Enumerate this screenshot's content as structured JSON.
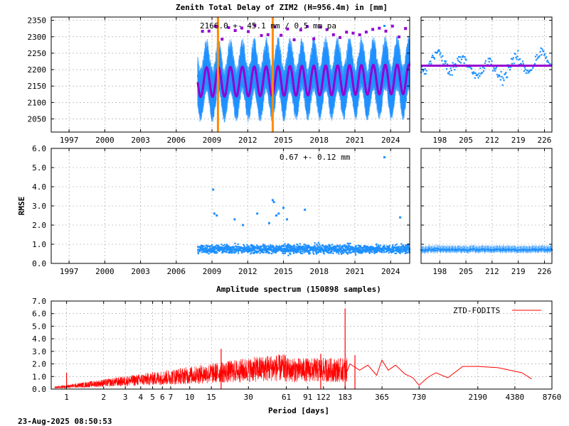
{
  "colors": {
    "ztd": "#1e90ff",
    "model": "#9400d3",
    "rmse": "#1e90ff",
    "spectrum": "#ff0000",
    "event_line": "#ff8c00",
    "grid": "#a0a0a0"
  },
  "footer": {
    "timestamp": "23-Aug-2025 08:50:53"
  },
  "chart_data": [
    {
      "id": "ztd",
      "type": "scatter",
      "title": "Zenith Total Delay of ZIM2 (H=956.4m) in [mm]",
      "annotation": "2166.0 +- 45.1 mm / 0.5 mm pa",
      "ylim": [
        2010,
        2360
      ],
      "yticks": [
        2050,
        2100,
        2150,
        2200,
        2250,
        2300,
        2350
      ],
      "xlim": [
        1995.5,
        2025.6
      ],
      "xticks": [
        1997,
        2000,
        2003,
        2006,
        2009,
        2012,
        2015,
        2018,
        2021,
        2024
      ],
      "data_start": 2007.8,
      "data_end": 2025.6,
      "mean": 2166.0,
      "seasonal_amplitude": 45,
      "trend_mm_per_year": 0.5,
      "event_lines": [
        2009.5,
        2014.1
      ],
      "grid": true
    },
    {
      "id": "ztd_recent",
      "type": "scatter",
      "ylim": [
        2010,
        2360
      ],
      "xlim": [
        193,
        228
      ],
      "xticks": [
        198,
        205,
        212,
        219,
        226
      ],
      "model_level": 2212,
      "grid": true
    },
    {
      "id": "rmse",
      "type": "scatter",
      "annotation": "0.67 +- 0.12 mm",
      "ylabel": "RMSE",
      "ylim": [
        0,
        6
      ],
      "yticks": [
        0.0,
        1.0,
        2.0,
        3.0,
        4.0,
        5.0,
        6.0
      ],
      "ytick_labels": [
        "0.0",
        "1.0",
        "2.0",
        "3.0",
        "4.0",
        "5.0",
        "6.0"
      ],
      "xlim": [
        1995.5,
        2025.6
      ],
      "xticks": [
        1997,
        2000,
        2003,
        2006,
        2009,
        2012,
        2015,
        2018,
        2021,
        2024
      ],
      "outliers": [
        {
          "x": 2009.1,
          "y": 3.85
        },
        {
          "x": 2009.2,
          "y": 2.6
        },
        {
          "x": 2009.4,
          "y": 2.5
        },
        {
          "x": 2010.9,
          "y": 2.3
        },
        {
          "x": 2011.6,
          "y": 2.0
        },
        {
          "x": 2012.8,
          "y": 2.6
        },
        {
          "x": 2013.8,
          "y": 2.1
        },
        {
          "x": 2014.1,
          "y": 3.3
        },
        {
          "x": 2014.2,
          "y": 3.2
        },
        {
          "x": 2014.4,
          "y": 2.5
        },
        {
          "x": 2014.6,
          "y": 2.6
        },
        {
          "x": 2015.0,
          "y": 2.9
        },
        {
          "x": 2015.3,
          "y": 2.3
        },
        {
          "x": 2016.8,
          "y": 2.8
        },
        {
          "x": 2024.8,
          "y": 2.4
        }
      ],
      "grid": true
    },
    {
      "id": "rmse_recent",
      "type": "scatter",
      "ylim": [
        0,
        6
      ],
      "xlim": [
        193,
        228
      ],
      "xticks": [
        198,
        205,
        212,
        219,
        226
      ],
      "level": 0.72,
      "grid": true
    },
    {
      "id": "spectrum",
      "type": "line",
      "title": "Amplitude spectrum (150898 samples)",
      "xlabel": "Period [days]",
      "ylim": [
        0,
        7
      ],
      "yticks": [
        0.0,
        1.0,
        2.0,
        3.0,
        4.0,
        5.0,
        6.0,
        7.0
      ],
      "ytick_labels": [
        "0.0",
        "1.0",
        "2.0",
        "3.0",
        "4.0",
        "5.0",
        "6.0",
        "7.0"
      ],
      "xlog": true,
      "xlim": [
        0.75,
        8760
      ],
      "xticks": [
        1,
        2,
        3,
        4,
        5,
        6,
        7,
        10,
        15,
        30,
        61,
        91,
        122,
        183,
        365,
        730,
        2190,
        4380,
        8760
      ],
      "series": [
        {
          "name": "ZTD-FODITS"
        }
      ],
      "peaks": [
        {
          "period": 1,
          "amp": 1.3
        },
        {
          "period": 18,
          "amp": 3.2
        },
        {
          "period": 116,
          "amp": 2.8
        },
        {
          "period": 183,
          "amp": 6.4
        },
        {
          "period": 220,
          "amp": 2.7
        }
      ],
      "long_period": [
        {
          "period": 200,
          "amp": 2.0
        },
        {
          "period": 240,
          "amp": 1.5
        },
        {
          "period": 280,
          "amp": 1.9
        },
        {
          "period": 330,
          "amp": 1.1
        },
        {
          "period": 365,
          "amp": 2.3
        },
        {
          "period": 410,
          "amp": 1.5
        },
        {
          "period": 470,
          "amp": 1.9
        },
        {
          "period": 560,
          "amp": 1.2
        },
        {
          "period": 650,
          "amp": 0.9
        },
        {
          "period": 730,
          "amp": 0.3
        },
        {
          "period": 850,
          "amp": 0.9
        },
        {
          "period": 1000,
          "amp": 1.3
        },
        {
          "period": 1250,
          "amp": 0.9
        },
        {
          "period": 1650,
          "amp": 1.8
        },
        {
          "period": 2200,
          "amp": 1.8
        },
        {
          "period": 3200,
          "amp": 1.7
        },
        {
          "period": 5000,
          "amp": 1.3
        },
        {
          "period": 6000,
          "amp": 0.8
        }
      ],
      "legend_position": "top-right",
      "grid": true
    }
  ]
}
